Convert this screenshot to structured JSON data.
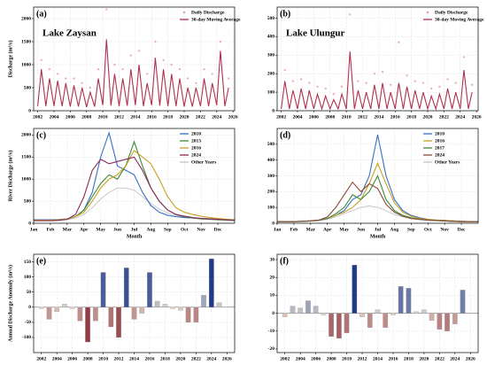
{
  "chart_data": [
    {
      "type": "line",
      "panel": "(a)",
      "annotation": "Lake Zaysan",
      "ylabel": "Discharge (m³/s)",
      "grid": true,
      "legend": "upper right",
      "xlim": [
        2001.5,
        2026.2
      ],
      "xticks": [
        2002,
        2004,
        2006,
        2008,
        2010,
        2012,
        2014,
        2016,
        2018,
        2020,
        2022,
        2024,
        2026
      ],
      "ylim": [
        0,
        2250
      ],
      "yticks": [
        0,
        500,
        1000,
        1500,
        2000
      ],
      "series": [
        {
          "name": "Daily Discharge",
          "style": "points",
          "color": "#e79aae",
          "x": [
            2002.45,
            2003.45,
            2004.45,
            2005.45,
            2006.45,
            2007.45,
            2008.45,
            2009.45,
            2010.45,
            2011.45,
            2012.45,
            2013.45,
            2014.45,
            2015.45,
            2016.45,
            2017.45,
            2018.45,
            2019.45,
            2020.45,
            2021.45,
            2022.45,
            2023.45,
            2024.45,
            2025.45
          ],
          "values": [
            1100,
            900,
            800,
            700,
            700,
            600,
            500,
            900,
            2200,
            1000,
            900,
            1200,
            1300,
            800,
            1500,
            1100,
            1000,
            900,
            700,
            600,
            900,
            800,
            1500,
            700
          ]
        },
        {
          "name": "30-day Moving Average",
          "style": "line",
          "color": "#b0304f",
          "x": [
            2002.0,
            2002.45,
            2003.0,
            2003.45,
            2004.0,
            2004.45,
            2005.0,
            2005.45,
            2006.0,
            2006.45,
            2007.0,
            2007.45,
            2008.0,
            2008.45,
            2009.0,
            2009.45,
            2010.0,
            2010.45,
            2011.0,
            2011.45,
            2012.0,
            2012.45,
            2013.0,
            2013.45,
            2014.0,
            2014.45,
            2015.0,
            2015.45,
            2016.0,
            2016.45,
            2017.0,
            2017.45,
            2018.0,
            2018.45,
            2019.0,
            2019.45,
            2020.0,
            2020.45,
            2021.0,
            2021.45,
            2022.0,
            2022.45,
            2023.0,
            2023.45,
            2024.0,
            2024.45,
            2025.0,
            2025.45
          ],
          "values": [
            100,
            900,
            100,
            700,
            100,
            650,
            100,
            600,
            90,
            550,
            90,
            500,
            80,
            400,
            90,
            700,
            120,
            1550,
            110,
            800,
            100,
            700,
            110,
            900,
            120,
            1000,
            100,
            600,
            120,
            1150,
            110,
            900,
            100,
            800,
            100,
            700,
            90,
            500,
            90,
            500,
            100,
            700,
            100,
            600,
            120,
            1300,
            100,
            500
          ]
        }
      ]
    },
    {
      "type": "line",
      "panel": "(b)",
      "annotation": "Lake Ulungur",
      "grid": true,
      "legend": "upper right",
      "xlim": [
        2001.5,
        2026.2
      ],
      "xticks": [
        2002,
        2004,
        2006,
        2008,
        2010,
        2012,
        2014,
        2016,
        2018,
        2020,
        2022,
        2024,
        2026
      ],
      "ylim": [
        0,
        560
      ],
      "yticks": [
        0,
        100,
        200,
        300,
        400,
        500
      ],
      "series": [
        {
          "name": "Daily Discharge",
          "style": "points",
          "color": "#e79aae",
          "x": [
            2002.45,
            2003.45,
            2004.45,
            2005.45,
            2006.45,
            2007.45,
            2008.45,
            2009.45,
            2010.45,
            2011.45,
            2012.45,
            2013.45,
            2014.45,
            2015.45,
            2016.45,
            2017.45,
            2018.45,
            2019.45,
            2020.45,
            2021.45,
            2022.45,
            2023.45,
            2024.45,
            2025.45
          ],
          "values": [
            220,
            160,
            170,
            150,
            130,
            120,
            90,
            130,
            520,
            160,
            150,
            200,
            210,
            140,
            370,
            190,
            160,
            150,
            120,
            130,
            170,
            150,
            290,
            140
          ]
        },
        {
          "name": "30-day Moving Average",
          "style": "line",
          "color": "#b0304f",
          "x": [
            2002.0,
            2002.45,
            2003.0,
            2003.45,
            2004.0,
            2004.45,
            2005.0,
            2005.45,
            2006.0,
            2006.45,
            2007.0,
            2007.45,
            2008.0,
            2008.45,
            2009.0,
            2009.45,
            2010.0,
            2010.45,
            2011.0,
            2011.45,
            2012.0,
            2012.45,
            2013.0,
            2013.45,
            2014.0,
            2014.45,
            2015.0,
            2015.45,
            2016.0,
            2016.45,
            2017.0,
            2017.45,
            2018.0,
            2018.45,
            2019.0,
            2019.45,
            2020.0,
            2020.45,
            2021.0,
            2021.45,
            2022.0,
            2022.45,
            2023.0,
            2023.45,
            2024.0,
            2024.45,
            2025.0,
            2025.45
          ],
          "values": [
            10,
            160,
            10,
            110,
            10,
            120,
            10,
            110,
            10,
            90,
            10,
            80,
            10,
            60,
            10,
            90,
            10,
            320,
            10,
            110,
            10,
            100,
            10,
            140,
            10,
            150,
            10,
            100,
            10,
            150,
            10,
            130,
            10,
            110,
            10,
            100,
            10,
            80,
            10,
            90,
            10,
            120,
            10,
            100,
            10,
            220,
            10,
            100
          ]
        }
      ]
    },
    {
      "type": "line",
      "panel": "(c)",
      "ylabel": "River Discharge (m³/s)",
      "xlabel": "Month",
      "grid": true,
      "legend": "upper right",
      "xlim": [
        0,
        12
      ],
      "xticks": [
        {
          "value": 0,
          "label": "Jan"
        },
        {
          "value": 1,
          "label": "Feb"
        },
        {
          "value": 2,
          "label": "Mar"
        },
        {
          "value": 3,
          "label": "Apr"
        },
        {
          "value": 4,
          "label": "May"
        },
        {
          "value": 5,
          "label": "Jun"
        },
        {
          "value": 6,
          "label": "Jul"
        },
        {
          "value": 7,
          "label": "Aug"
        },
        {
          "value": 8,
          "label": "Sep"
        },
        {
          "value": 9,
          "label": "Oct"
        },
        {
          "value": 10,
          "label": "Nov"
        },
        {
          "value": 11,
          "label": "Dec"
        }
      ],
      "ylim": [
        0,
        2150
      ],
      "yticks": [
        0,
        500,
        1000,
        1500,
        2000
      ],
      "x": [
        0,
        0.5,
        1,
        1.5,
        2,
        2.5,
        3,
        3.5,
        4,
        4.5,
        5,
        5.5,
        6,
        6.5,
        7,
        7.5,
        8,
        8.5,
        9,
        9.5,
        10,
        10.5,
        11,
        11.5,
        12
      ],
      "series": [
        {
          "name": "Other Years",
          "style": "line",
          "color": "#c4c4c4",
          "values": [
            50,
            50,
            50,
            60,
            80,
            120,
            200,
            350,
            550,
            700,
            800,
            800,
            750,
            600,
            450,
            320,
            230,
            180,
            140,
            120,
            100,
            90,
            80,
            70,
            60
          ]
        },
        {
          "name": "2010",
          "style": "line",
          "color": "#3a6fc4",
          "values": [
            80,
            80,
            80,
            85,
            100,
            150,
            300,
            700,
            1500,
            2050,
            1300,
            1200,
            1100,
            700,
            400,
            250,
            180,
            150,
            130,
            120,
            110,
            100,
            90,
            85,
            80
          ]
        },
        {
          "name": "2013",
          "style": "line",
          "color": "#3d8a34",
          "values": [
            60,
            60,
            60,
            70,
            90,
            150,
            300,
            600,
            900,
            1100,
            1000,
            1300,
            1850,
            1300,
            800,
            500,
            300,
            200,
            150,
            120,
            100,
            90,
            80,
            70,
            60
          ]
        },
        {
          "name": "2016",
          "style": "line",
          "color": "#c8a020",
          "values": [
            70,
            70,
            70,
            80,
            100,
            150,
            250,
            500,
            800,
            1000,
            1100,
            1300,
            1650,
            1500,
            1350,
            1000,
            600,
            350,
            250,
            200,
            160,
            130,
            110,
            90,
            80
          ]
        },
        {
          "name": "2024",
          "style": "line",
          "color": "#8a2a5c",
          "values": [
            60,
            60,
            60,
            70,
            90,
            200,
            600,
            1200,
            1450,
            1350,
            1400,
            1450,
            1500,
            1200,
            800,
            500,
            300,
            200,
            160,
            130,
            110,
            100,
            90,
            80,
            70
          ]
        }
      ]
    },
    {
      "type": "line",
      "panel": "(d)",
      "xlabel": "Month",
      "grid": true,
      "legend": "upper right",
      "xlim": [
        0,
        12
      ],
      "xticks": [
        {
          "value": 0,
          "label": "Jan"
        },
        {
          "value": 1,
          "label": "Feb"
        },
        {
          "value": 2,
          "label": "Mar"
        },
        {
          "value": 3,
          "label": "Apr"
        },
        {
          "value": 4,
          "label": "May"
        },
        {
          "value": 5,
          "label": "Jun"
        },
        {
          "value": 6,
          "label": "Jul"
        },
        {
          "value": 7,
          "label": "Aug"
        },
        {
          "value": 8,
          "label": "Sep"
        },
        {
          "value": 9,
          "label": "Oct"
        },
        {
          "value": 10,
          "label": "Nov"
        },
        {
          "value": 11,
          "label": "Dec"
        }
      ],
      "ylim": [
        0,
        600
      ],
      "yticks": [
        0,
        100,
        200,
        300,
        400,
        500
      ],
      "x": [
        0,
        0.5,
        1,
        1.5,
        2,
        2.5,
        3,
        3.5,
        4,
        4.5,
        5,
        5.5,
        6,
        6.5,
        7,
        7.5,
        8,
        8.5,
        9,
        9.5,
        10,
        10.5,
        11,
        11.5,
        12
      ],
      "series": [
        {
          "name": "Other Years",
          "style": "line",
          "color": "#c4c4c4",
          "values": [
            8,
            8,
            8,
            10,
            12,
            15,
            25,
            40,
            60,
            80,
            100,
            110,
            100,
            80,
            55,
            40,
            30,
            22,
            18,
            15,
            12,
            10,
            9,
            8,
            8
          ]
        },
        {
          "name": "2010",
          "style": "line",
          "color": "#3a6fc4",
          "values": [
            10,
            10,
            10,
            12,
            15,
            20,
            30,
            50,
            80,
            150,
            180,
            300,
            560,
            300,
            150,
            80,
            50,
            35,
            25,
            20,
            18,
            15,
            12,
            10,
            10
          ]
        },
        {
          "name": "2016",
          "style": "line",
          "color": "#c8a020",
          "values": [
            10,
            10,
            10,
            12,
            15,
            20,
            30,
            50,
            70,
            100,
            150,
            250,
            380,
            250,
            130,
            70,
            45,
            30,
            25,
            20,
            18,
            15,
            12,
            10,
            10
          ]
        },
        {
          "name": "2017",
          "style": "line",
          "color": "#3d8a34",
          "values": [
            10,
            10,
            10,
            12,
            15,
            20,
            30,
            60,
            100,
            180,
            150,
            200,
            300,
            150,
            80,
            50,
            35,
            25,
            20,
            18,
            15,
            12,
            10,
            10,
            10
          ]
        },
        {
          "name": "2024",
          "style": "line",
          "color": "#8b4a3a",
          "values": [
            10,
            10,
            10,
            12,
            15,
            20,
            40,
            100,
            180,
            260,
            200,
            250,
            220,
            120,
            70,
            45,
            30,
            25,
            20,
            18,
            15,
            12,
            10,
            10,
            10
          ]
        }
      ]
    },
    {
      "type": "bar",
      "panel": "(e)",
      "ylabel": "Annual Discharge Anomaly (m³/s)",
      "grid": true,
      "positive_color": "#1f3a8a",
      "negative_color": "#7a1020",
      "neutral_color": "#efe6d6",
      "xlim": [
        2001,
        2027
      ],
      "xticks": [
        2002,
        2004,
        2006,
        2008,
        2010,
        2012,
        2014,
        2016,
        2018,
        2020,
        2022,
        2024,
        2026
      ],
      "ylim": [
        -150,
        175
      ],
      "yticks": [
        -100,
        -50,
        0,
        50,
        100,
        150
      ],
      "x": [
        2002,
        2003,
        2004,
        2005,
        2006,
        2007,
        2008,
        2009,
        2010,
        2011,
        2012,
        2013,
        2014,
        2015,
        2016,
        2017,
        2018,
        2019,
        2020,
        2021,
        2022,
        2023,
        2024,
        2025
      ],
      "values": [
        -5,
        -40,
        -15,
        10,
        -5,
        -45,
        -115,
        -45,
        115,
        -65,
        -100,
        130,
        -40,
        -20,
        115,
        20,
        10,
        -5,
        -10,
        -50,
        -50,
        40,
        160,
        15
      ]
    },
    {
      "type": "bar",
      "panel": "(f)",
      "grid": true,
      "positive_color": "#1f3a8a",
      "negative_color": "#7a1020",
      "neutral_color": "#efe6d6",
      "xlim": [
        2001,
        2027
      ],
      "xticks": [
        2002,
        2004,
        2006,
        2008,
        2010,
        2012,
        2014,
        2016,
        2018,
        2020,
        2022,
        2024,
        2026
      ],
      "ylim": [
        -22,
        33
      ],
      "yticks": [
        -20,
        -10,
        0,
        10,
        20,
        30
      ],
      "x": [
        2002,
        2003,
        2004,
        2005,
        2006,
        2007,
        2008,
        2009,
        2010,
        2011,
        2012,
        2013,
        2014,
        2015,
        2016,
        2017,
        2018,
        2019,
        2020,
        2021,
        2022,
        2023,
        2024,
        2025
      ],
      "values": [
        -2,
        4,
        3,
        7,
        4,
        -1,
        -13,
        -14,
        -11,
        27,
        -2,
        -8,
        2,
        -8,
        -1,
        15,
        14,
        1,
        2,
        -4,
        -9,
        -10,
        -6,
        13
      ]
    }
  ]
}
